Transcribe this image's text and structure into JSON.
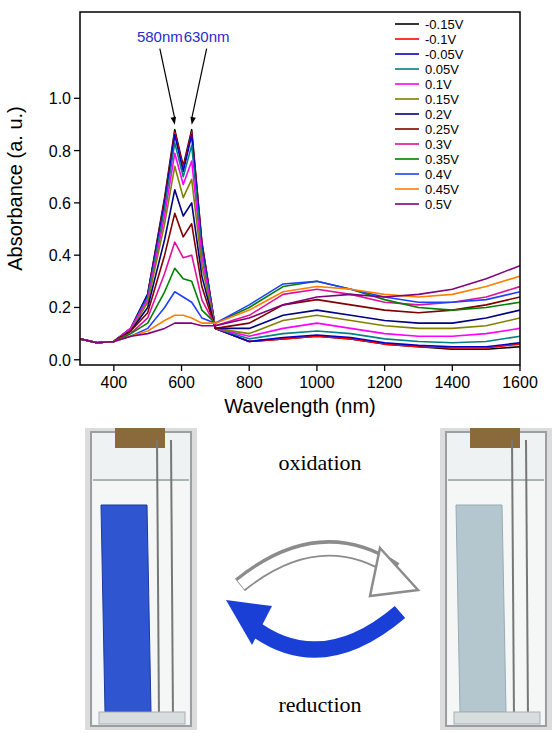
{
  "chart_data": {
    "type": "line",
    "x_label": "Wavelength (nm)",
    "y_label": "Absorbance (a. u.)",
    "x": [
      300,
      350,
      400,
      450,
      500,
      550,
      580,
      605,
      630,
      660,
      700,
      800,
      900,
      1000,
      1100,
      1200,
      1300,
      1400,
      1500,
      1600
    ],
    "xlim": [
      300,
      1600
    ],
    "xticks": [
      400,
      600,
      800,
      1000,
      1200,
      1400,
      1600
    ],
    "ylim": [
      -0.02,
      1.33
    ],
    "yticks": [
      {
        "value": 0,
        "label": "0.0"
      },
      {
        "value": 0.2,
        "label": "0.2"
      },
      {
        "value": 0.4,
        "label": "0.4"
      },
      {
        "value": 0.6,
        "label": "0.6"
      },
      {
        "value": 0.8,
        "label": "0.8"
      },
      {
        "value": 1,
        "label": "1.0"
      }
    ],
    "grid": false,
    "legend": "upper right",
    "annotations": [
      {
        "text": "580nm",
        "x": 580,
        "y": 0.88
      },
      {
        "text": "630nm",
        "x": 630,
        "y": 0.88
      }
    ],
    "series": [
      {
        "name": "-0.15V",
        "color": "#000000",
        "values": [
          0.08,
          0.065,
          0.07,
          0.12,
          0.25,
          0.62,
          0.88,
          0.74,
          0.88,
          0.45,
          0.12,
          0.07,
          0.08,
          0.09,
          0.08,
          0.06,
          0.05,
          0.04,
          0.04,
          0.05
        ]
      },
      {
        "name": "-0.1V",
        "color": "#ff0000",
        "values": [
          0.08,
          0.065,
          0.07,
          0.12,
          0.25,
          0.61,
          0.87,
          0.73,
          0.87,
          0.45,
          0.12,
          0.07,
          0.08,
          0.09,
          0.08,
          0.06,
          0.05,
          0.045,
          0.045,
          0.06
        ]
      },
      {
        "name": "-0.05V",
        "color": "#0000cc",
        "values": [
          0.08,
          0.065,
          0.07,
          0.12,
          0.25,
          0.6,
          0.86,
          0.72,
          0.86,
          0.44,
          0.12,
          0.07,
          0.085,
          0.095,
          0.085,
          0.065,
          0.055,
          0.05,
          0.05,
          0.065
        ]
      },
      {
        "name": "0.05V",
        "color": "#008080",
        "values": [
          0.08,
          0.065,
          0.07,
          0.12,
          0.24,
          0.58,
          0.83,
          0.7,
          0.82,
          0.42,
          0.12,
          0.08,
          0.1,
          0.11,
          0.1,
          0.08,
          0.07,
          0.065,
          0.07,
          0.09
        ]
      },
      {
        "name": "0.1V",
        "color": "#ff00ff",
        "values": [
          0.08,
          0.065,
          0.07,
          0.12,
          0.23,
          0.55,
          0.79,
          0.67,
          0.76,
          0.39,
          0.12,
          0.09,
          0.12,
          0.14,
          0.12,
          0.1,
          0.09,
          0.09,
          0.1,
          0.12
        ]
      },
      {
        "name": "0.15V",
        "color": "#808000",
        "values": [
          0.08,
          0.065,
          0.07,
          0.11,
          0.22,
          0.52,
          0.74,
          0.62,
          0.69,
          0.36,
          0.12,
          0.1,
          0.15,
          0.17,
          0.15,
          0.13,
          0.12,
          0.12,
          0.13,
          0.16
        ]
      },
      {
        "name": "0.2V",
        "color": "#000080",
        "values": [
          0.08,
          0.065,
          0.07,
          0.11,
          0.2,
          0.46,
          0.65,
          0.55,
          0.6,
          0.32,
          0.12,
          0.12,
          0.17,
          0.19,
          0.17,
          0.15,
          0.14,
          0.14,
          0.16,
          0.19
        ]
      },
      {
        "name": "0.25V",
        "color": "#800000",
        "values": [
          0.08,
          0.065,
          0.07,
          0.11,
          0.18,
          0.4,
          0.56,
          0.47,
          0.52,
          0.28,
          0.12,
          0.14,
          0.21,
          0.23,
          0.21,
          0.19,
          0.18,
          0.19,
          0.21,
          0.24
        ]
      },
      {
        "name": "0.3V",
        "color": "#e0109a",
        "values": [
          0.08,
          0.065,
          0.07,
          0.1,
          0.16,
          0.33,
          0.45,
          0.39,
          0.4,
          0.23,
          0.13,
          0.17,
          0.25,
          0.27,
          0.25,
          0.22,
          0.21,
          0.22,
          0.24,
          0.28
        ]
      },
      {
        "name": "0.35V",
        "color": "#008000",
        "values": [
          0.08,
          0.065,
          0.07,
          0.1,
          0.14,
          0.26,
          0.35,
          0.31,
          0.3,
          0.19,
          0.14,
          0.2,
          0.28,
          0.3,
          0.27,
          0.23,
          0.2,
          0.19,
          0.2,
          0.22
        ]
      },
      {
        "name": "0.4V",
        "color": "#2040ff",
        "values": [
          0.08,
          0.065,
          0.07,
          0.09,
          0.12,
          0.2,
          0.26,
          0.24,
          0.22,
          0.16,
          0.14,
          0.21,
          0.29,
          0.3,
          0.27,
          0.24,
          0.22,
          0.22,
          0.23,
          0.26
        ]
      },
      {
        "name": "0.45V",
        "color": "#ff8000",
        "values": [
          0.08,
          0.065,
          0.07,
          0.09,
          0.11,
          0.15,
          0.17,
          0.17,
          0.16,
          0.14,
          0.14,
          0.19,
          0.26,
          0.28,
          0.27,
          0.25,
          0.24,
          0.25,
          0.28,
          0.32
        ]
      },
      {
        "name": "0.5V",
        "color": "#800080",
        "values": [
          0.08,
          0.065,
          0.07,
          0.09,
          0.1,
          0.12,
          0.14,
          0.14,
          0.14,
          0.13,
          0.13,
          0.16,
          0.21,
          0.24,
          0.25,
          0.24,
          0.25,
          0.27,
          0.31,
          0.36
        ]
      }
    ]
  },
  "scheme": {
    "oxidation_label": "oxidation",
    "reduction_label": "reduction"
  }
}
